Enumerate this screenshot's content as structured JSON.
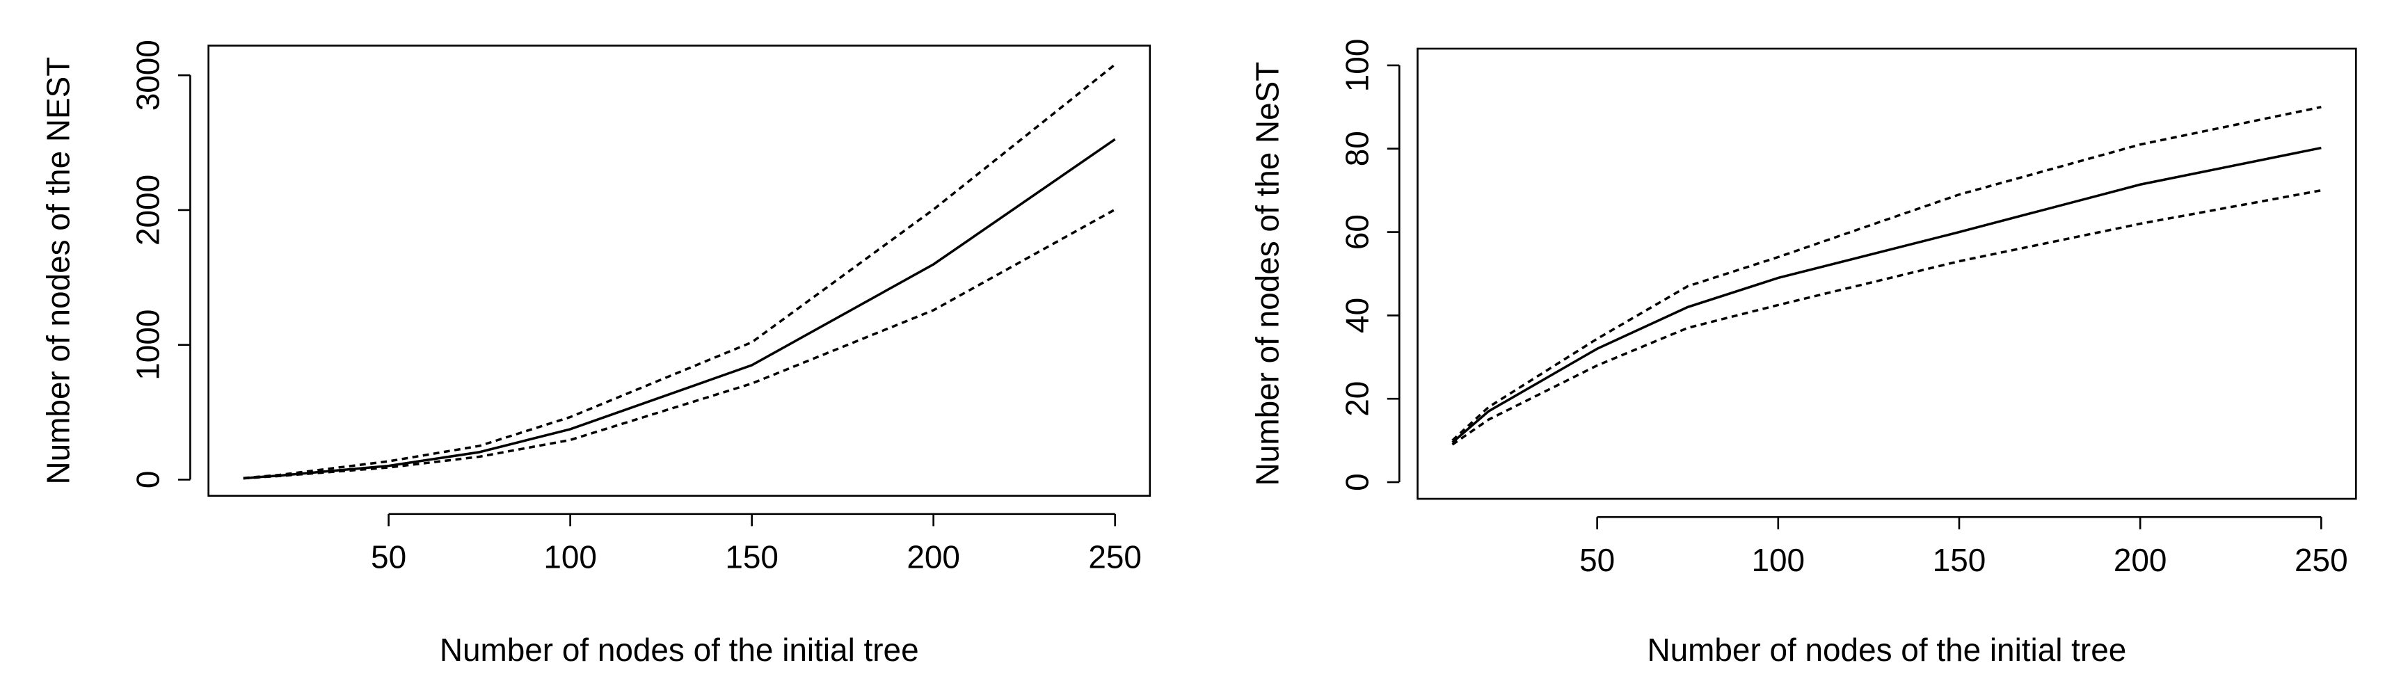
{
  "chart_data": [
    {
      "type": "line",
      "x_label": "Number of nodes of the initial tree",
      "y_label": "Number of nodes of the NEST",
      "x": [
        10,
        20,
        50,
        75,
        100,
        150,
        200,
        250
      ],
      "series": [
        {
          "color": "#000000",
          "dashed": false,
          "values": [
            10,
            30,
            102,
            204,
            374,
            849,
            1597,
            2525
          ]
        },
        {
          "color": "#000000",
          "dashed": true,
          "values": [
            11,
            35,
            136,
            250,
            464,
            1019,
            2004,
            3080
          ]
        },
        {
          "color": "#000000",
          "dashed": true,
          "values": [
            9,
            27,
            90,
            170,
            294,
            713,
            1257,
            2004
          ]
        }
      ],
      "xlim": [
        0.4,
        259.6
      ],
      "ylim": [
        -120,
        3220
      ],
      "xticks": [
        50,
        100,
        150,
        200,
        250
      ],
      "yticks": [
        0,
        1000,
        2000,
        3000
      ]
    },
    {
      "type": "line",
      "x_label": "Number of nodes of the initial tree",
      "y_label": "Number of nodes of the NeST",
      "x": [
        10,
        20,
        50,
        75,
        100,
        150,
        200,
        250
      ],
      "series": [
        {
          "color": "#000000",
          "dashed": false,
          "values": [
            9.5,
            17,
            32,
            42,
            49,
            60,
            71.4,
            80.2
          ]
        },
        {
          "color": "#000000",
          "dashed": true,
          "values": [
            10,
            18,
            34.4,
            47,
            54,
            69,
            81,
            90
          ]
        },
        {
          "color": "#000000",
          "dashed": true,
          "values": [
            9,
            15,
            28,
            37,
            42.5,
            53,
            62,
            70
          ]
        }
      ],
      "xlim": [
        0.4,
        259.6
      ],
      "ylim": [
        -4,
        104
      ],
      "xticks": [
        50,
        100,
        150,
        200,
        250
      ],
      "yticks": [
        0,
        20,
        40,
        60,
        80,
        100
      ]
    }
  ]
}
